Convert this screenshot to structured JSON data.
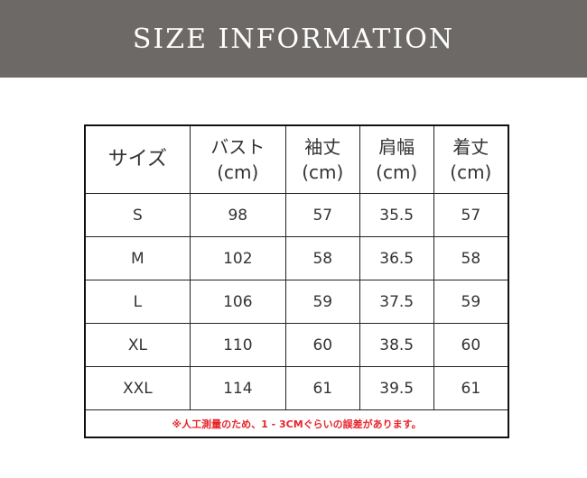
{
  "banner": {
    "title": "SIZE INFORMATION"
  },
  "table": {
    "headers": [
      {
        "name": "サイズ",
        "unit": ""
      },
      {
        "name": "バスト",
        "unit": "(cm)"
      },
      {
        "name": "袖丈",
        "unit": "(cm)"
      },
      {
        "name": "肩幅",
        "unit": "(cm)"
      },
      {
        "name": "着丈",
        "unit": "(cm)"
      }
    ],
    "rows": [
      [
        "S",
        "98",
        "57",
        "35.5",
        "57"
      ],
      [
        "M",
        "102",
        "58",
        "36.5",
        "58"
      ],
      [
        "L",
        "106",
        "59",
        "37.5",
        "59"
      ],
      [
        "XL",
        "110",
        "60",
        "38.5",
        "60"
      ],
      [
        "XXL",
        "114",
        "61",
        "39.5",
        "61"
      ]
    ],
    "note": "※人工測量のため、1 - 3CMぐらいの誤差があります。"
  },
  "colors": {
    "banner": "#6d6967",
    "note": "#e8232a"
  }
}
